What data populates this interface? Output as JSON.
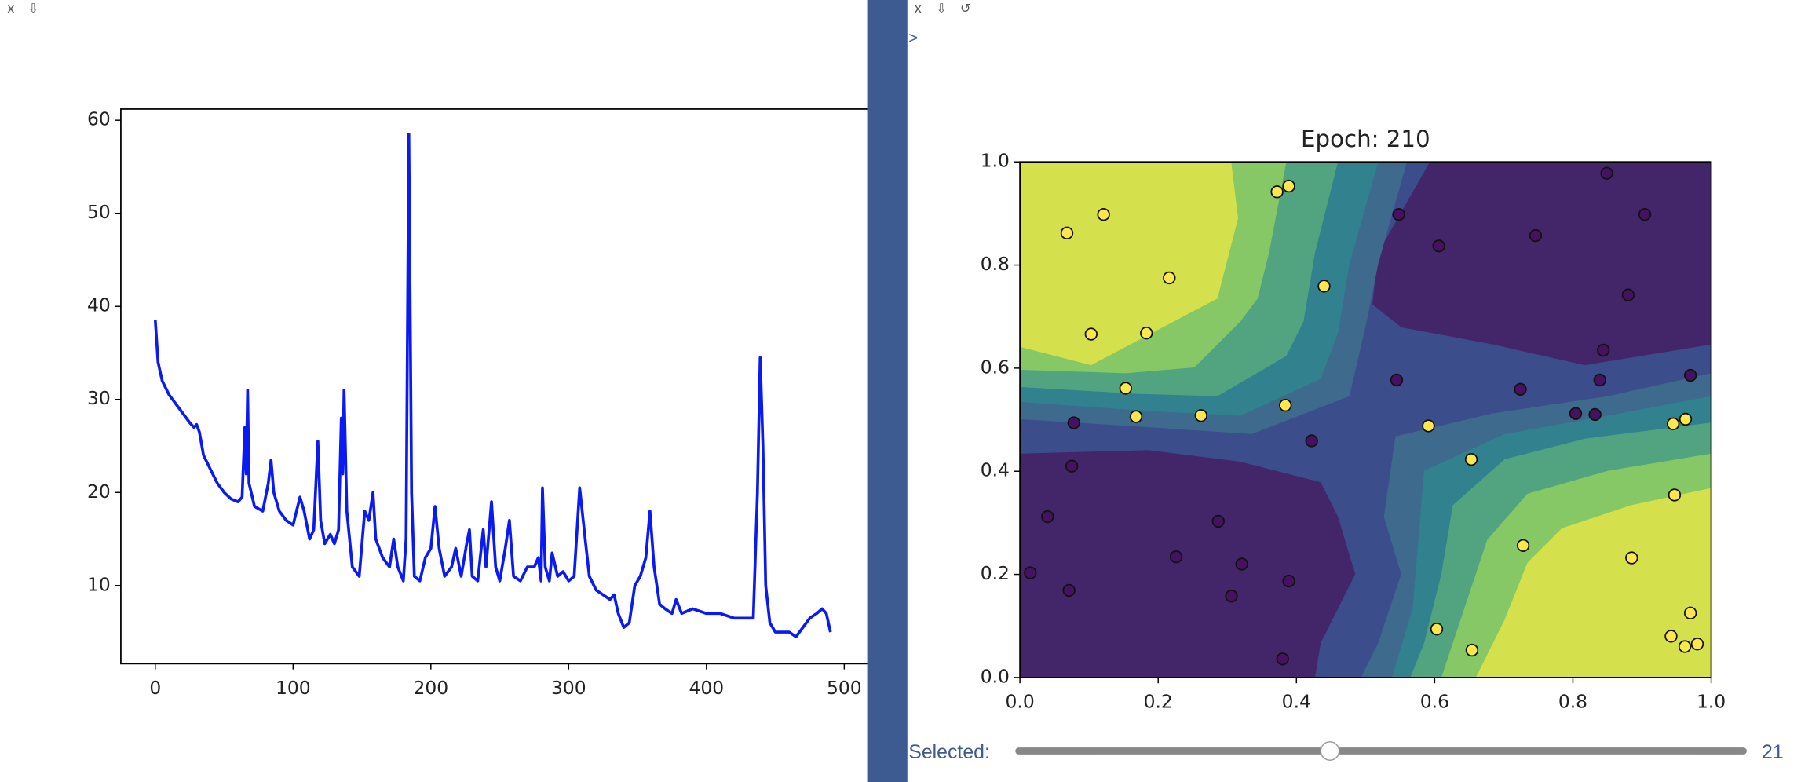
{
  "ui": {
    "left_toolbar": [
      "x",
      "⇩"
    ],
    "right_toolbar": [
      "x",
      "⇩",
      "↺"
    ],
    "prompt": ">",
    "slider_label": "Selected:",
    "slider_value": 21
  },
  "chart_data": [
    {
      "type": "line",
      "color": "#0a1af2",
      "x": [
        0,
        2,
        5,
        10,
        15,
        20,
        25,
        28,
        30,
        32,
        35,
        40,
        45,
        50,
        55,
        60,
        63,
        65,
        66,
        67,
        68,
        72,
        78,
        82,
        84,
        86,
        90,
        95,
        100,
        105,
        108,
        112,
        115,
        118,
        120,
        123,
        127,
        130,
        133,
        135,
        136,
        137,
        139,
        143,
        148,
        152,
        155,
        158,
        160,
        165,
        170,
        173,
        176,
        180,
        182,
        184,
        186,
        188,
        192,
        196,
        200,
        203,
        206,
        210,
        215,
        218,
        222,
        226,
        228,
        230,
        234,
        238,
        240,
        244,
        247,
        250,
        254,
        257,
        260,
        265,
        270,
        275,
        278,
        280,
        281,
        283,
        286,
        288,
        292,
        296,
        300,
        304,
        308,
        312,
        315,
        320,
        325,
        330,
        333,
        336,
        340,
        344,
        348,
        352,
        356,
        359,
        362,
        366,
        370,
        375,
        378,
        382,
        390,
        400,
        410,
        420,
        430,
        434,
        437,
        439,
        441,
        443,
        446,
        450,
        460,
        465,
        470,
        475,
        480,
        484,
        487,
        490
      ],
      "values": [
        38.5,
        34,
        32,
        30.5,
        29.5,
        28.5,
        27.5,
        27,
        27.3,
        26.5,
        24,
        22.5,
        21,
        20,
        19.3,
        19,
        19.5,
        27,
        22,
        31,
        21,
        18.5,
        18,
        21,
        23.5,
        20,
        18,
        17,
        16.5,
        19.5,
        18,
        15,
        16,
        25.5,
        17,
        14.5,
        15.5,
        14.5,
        16,
        28,
        22,
        31,
        18,
        12,
        11,
        18,
        17,
        20,
        15,
        13,
        12,
        15,
        12,
        10.5,
        15,
        58.5,
        20,
        11,
        10.5,
        13,
        14,
        18.5,
        14,
        11,
        12,
        14,
        11,
        14.5,
        16,
        11,
        10.5,
        16,
        12,
        19,
        12,
        10.5,
        14,
        17,
        11,
        10.5,
        12,
        12,
        13,
        10.5,
        20.5,
        12,
        10.5,
        13.5,
        11,
        11.5,
        10.5,
        11,
        20.5,
        15,
        11,
        9.5,
        9,
        8.5,
        9,
        7,
        5.5,
        6,
        10,
        11,
        13,
        18,
        12,
        8,
        7.5,
        7,
        8.5,
        7,
        7.5,
        7,
        7,
        6.5,
        6.5,
        6.5,
        20,
        34.5,
        25,
        10,
        6,
        5,
        5,
        4.5,
        5.5,
        6.5,
        7,
        7.5,
        7,
        5
      ],
      "xlim": [
        -25,
        530
      ],
      "ylim": [
        1.6,
        61.2
      ],
      "xticks": [
        0,
        100,
        200,
        300,
        400,
        500
      ],
      "yticks": [
        10,
        20,
        30,
        40,
        50,
        60
      ]
    },
    {
      "type": "scatter",
      "title": "Epoch: 210",
      "series": [
        {
          "color": "#fde74c",
          "x": [
            0.068,
            0.121,
            0.372,
            0.389,
            0.216,
            0.44,
            0.103,
            0.183,
            0.153,
            0.168,
            0.262,
            0.384,
            0.591,
            0.653,
            0.945,
            0.963,
            0.947,
            0.728,
            0.885,
            0.97,
            0.942,
            0.962,
            0.98,
            0.603,
            0.654
          ],
          "values": [
            0.862,
            0.898,
            0.942,
            0.953,
            0.775,
            0.759,
            0.666,
            0.668,
            0.561,
            0.506,
            0.508,
            0.528,
            0.488,
            0.423,
            0.492,
            0.501,
            0.354,
            0.256,
            0.232,
            0.125,
            0.08,
            0.06,
            0.065,
            0.094,
            0.053
          ]
        },
        {
          "color": "#46125f",
          "x": [
            0.548,
            0.606,
            0.746,
            0.849,
            0.904,
            0.88,
            0.844,
            0.839,
            0.97,
            0.545,
            0.724,
            0.804,
            0.832,
            0.078,
            0.422,
            0.075,
            0.04,
            0.015,
            0.287,
            0.226,
            0.321,
            0.071,
            0.306,
            0.389,
            0.38
          ],
          "values": [
            0.898,
            0.837,
            0.857,
            0.978,
            0.898,
            0.742,
            0.635,
            0.577,
            0.586,
            0.577,
            0.559,
            0.512,
            0.51,
            0.494,
            0.459,
            0.41,
            0.312,
            0.203,
            0.303,
            0.234,
            0.22,
            0.169,
            0.158,
            0.187,
            0.036
          ]
        }
      ],
      "xlim": [
        0,
        1
      ],
      "ylim": [
        0,
        1
      ],
      "xticks": [
        {
          "value": 0,
          "label": "0.0"
        },
        0.2,
        0.4,
        0.6,
        0.8,
        {
          "value": 1,
          "label": "1.0"
        }
      ],
      "yticks": [
        {
          "value": 0,
          "label": "0.0"
        },
        0.2,
        0.4,
        0.6,
        0.8,
        {
          "value": 1,
          "label": "1.0"
        }
      ]
    }
  ]
}
